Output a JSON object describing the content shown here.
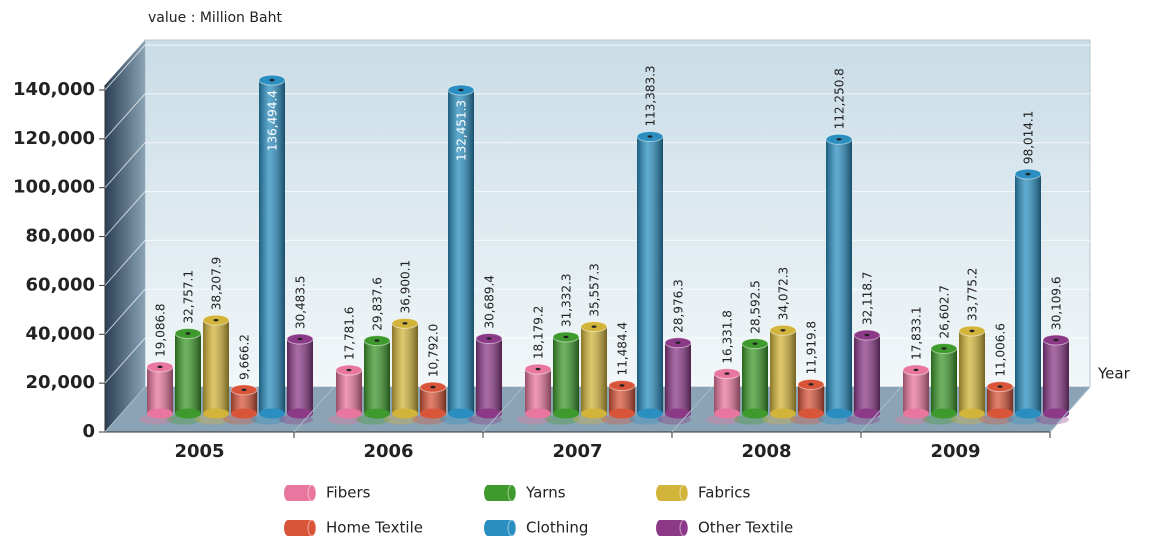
{
  "chart_data": {
    "type": "bar3d",
    "y_axis_label": "value : Million Baht",
    "x_axis_label": "Year",
    "categories": [
      "2005",
      "2006",
      "2007",
      "2008",
      "2009"
    ],
    "series": [
      {
        "name": "Fibers",
        "color": "#e8769e",
        "values": [
          19086.8,
          17781.6,
          18179.2,
          16331.8,
          17833.1
        ],
        "value_labels": [
          "19,086.8",
          "17,781.6",
          "18,179.2",
          "16,331.8",
          "17,833.1"
        ]
      },
      {
        "name": "Yarns",
        "color": "#3e9a2c",
        "values": [
          32757.1,
          29837.6,
          31332.3,
          28592.5,
          26602.7
        ],
        "value_labels": [
          "32,757.1",
          "29,837.6",
          "31,332.3",
          "28,592.5",
          "26,602.7"
        ]
      },
      {
        "name": "Fabrics",
        "color": "#d2b43a",
        "values": [
          38207.9,
          36900.1,
          35557.3,
          34072.3,
          33775.2
        ],
        "value_labels": [
          "38,207.9",
          "36,900.1",
          "35,557.3",
          "34,072.3",
          "33,775.2"
        ]
      },
      {
        "name": "Home Textile",
        "color": "#d8553a",
        "values": [
          9666.2,
          10792.0,
          11484.4,
          11919.8,
          11006.6
        ],
        "value_labels": [
          "9,666.2",
          "10,792.0",
          "11,484.4",
          "11,919.8",
          "11,006.6"
        ]
      },
      {
        "name": "Clothing",
        "color": "#2a8ec0",
        "values": [
          136494.4,
          132451.3,
          113383.3,
          112250.8,
          98014.1
        ],
        "value_labels": [
          "136,494.4",
          "132,451.3",
          "113,383.3",
          "112,250.8",
          "98,014.1"
        ]
      },
      {
        "name": "Other Textile",
        "color": "#8c3a88",
        "values": [
          30483.5,
          30689.4,
          28976.3,
          32118.7,
          30109.6
        ],
        "value_labels": [
          "30,483.5",
          "30,689.4",
          "28,976.3",
          "32,118.7",
          "30,109.6"
        ]
      }
    ],
    "ylim": [
      0,
      140000
    ],
    "yticks": [
      0,
      {
        "value": 20000,
        "label": "20,000"
      },
      {
        "value": 40000,
        "label": "40,000"
      },
      {
        "value": 60000,
        "label": "60,000"
      },
      {
        "value": 80000,
        "label": "80,000"
      },
      {
        "value": 100000,
        "label": "100,000"
      },
      {
        "value": 120000,
        "label": "120,000"
      },
      {
        "value": 140000,
        "label": "140,000"
      }
    ],
    "grid": true
  }
}
